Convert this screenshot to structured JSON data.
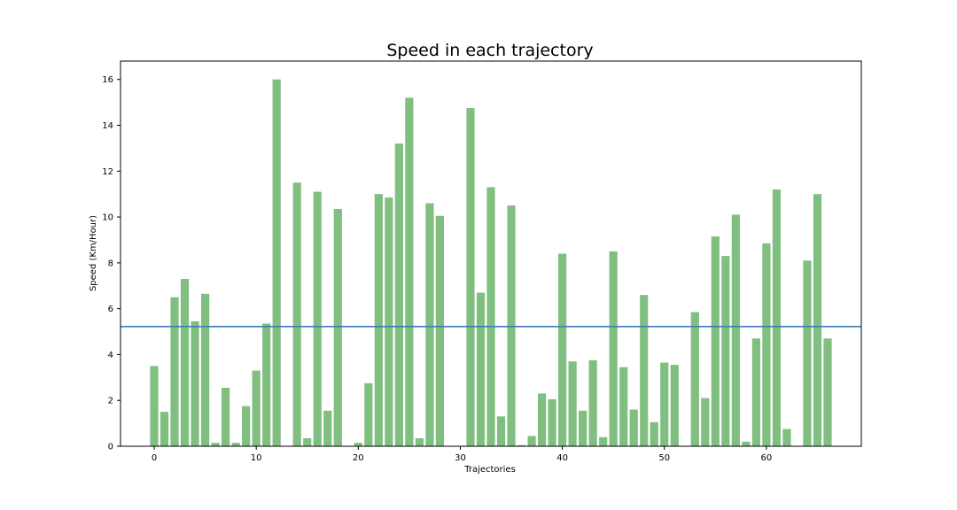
{
  "chart_data": {
    "type": "bar",
    "title": "Speed in each trajectory",
    "xlabel": "Trajectories",
    "ylabel": "Speed (Km/Hour)",
    "x": [
      0,
      1,
      2,
      3,
      4,
      5,
      6,
      7,
      8,
      9,
      10,
      11,
      12,
      13,
      14,
      15,
      16,
      17,
      18,
      19,
      20,
      21,
      22,
      23,
      24,
      25,
      26,
      27,
      28,
      29,
      30,
      31,
      32,
      33,
      34,
      35,
      36,
      37,
      38,
      39,
      40,
      41,
      42,
      43,
      44,
      45,
      46,
      47,
      48,
      49,
      50,
      51,
      52,
      53,
      54,
      55,
      56,
      57,
      58,
      59,
      60,
      61,
      62,
      63,
      64,
      65,
      66
    ],
    "values": [
      3.5,
      1.5,
      6.5,
      7.3,
      5.45,
      6.65,
      0.15,
      2.55,
      0.15,
      1.75,
      3.3,
      5.35,
      16.0,
      0,
      11.5,
      0.35,
      11.1,
      1.55,
      10.35,
      0,
      0.15,
      2.75,
      11.0,
      10.85,
      13.2,
      15.2,
      0.35,
      10.6,
      10.05,
      0,
      0,
      14.75,
      6.7,
      11.3,
      1.3,
      10.5,
      0.05,
      0.45,
      2.3,
      2.05,
      8.4,
      3.7,
      1.55,
      3.75,
      0.4,
      8.5,
      3.45,
      1.6,
      6.6,
      1.05,
      3.65,
      3.55,
      0,
      5.85,
      2.1,
      9.15,
      8.3,
      10.1,
      0.2,
      4.7,
      8.85,
      11.2,
      0.75,
      0,
      8.1,
      11.0,
      4.7
    ],
    "mean_line": 5.22,
    "xlim": [
      -3.3,
      69.3
    ],
    "ylim": [
      0,
      16.8
    ],
    "xticks": [
      0,
      10,
      20,
      30,
      40,
      50,
      60
    ],
    "yticks": [
      0,
      2,
      4,
      6,
      8,
      10,
      12,
      14,
      16
    ],
    "grid": false,
    "colors": {
      "bar": "#81bf81",
      "mean_line": "#3a7fb5",
      "axis": "#000000"
    }
  }
}
